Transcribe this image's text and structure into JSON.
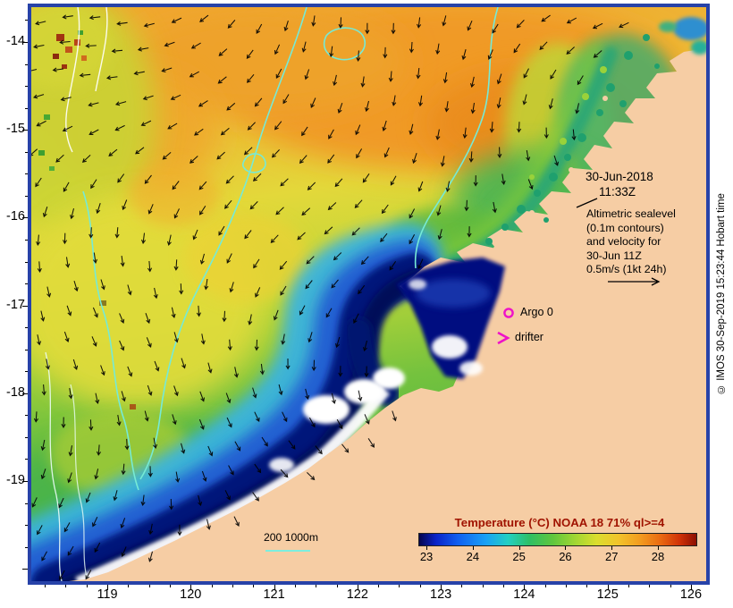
{
  "axes": {
    "lat_labels": [
      "-14",
      "-15",
      "-16",
      "-17",
      "-18",
      "-19"
    ],
    "lon_labels": [
      "119",
      "120",
      "121",
      "122",
      "123",
      "124",
      "125",
      "126"
    ]
  },
  "annotations": {
    "date_line1": "30-Jun-2018",
    "date_line2": "11:33Z",
    "altimetric_lines": [
      "Altimetric sealevel",
      "(0.1m contours)",
      "and velocity for",
      "30-Jun 11Z",
      "0.5m/s (1kt 24h)"
    ],
    "argo_label": "Argo 0",
    "drifter_label": "drifter",
    "depth_label": "200 1000m",
    "copyright": "© IMOS 30-Sep-2019 15:23:44 Hobart time"
  },
  "colorbar": {
    "title": "Temperature (°C) NOAA 18 71% ql>=4",
    "title_color": "#a01300",
    "tick_labels": [
      "23",
      "24",
      "25",
      "26",
      "27",
      "28"
    ]
  },
  "colors": {
    "marker_magenta": "#ee12c8",
    "land": "#f6cda4",
    "contour_cyan": "#76ead6",
    "depth_line_cyan": "#7ceede",
    "frame_blue": "#2742a8",
    "arrow_black": "#000000"
  },
  "chart_data": {
    "type": "heatmap",
    "title": "Temperature (°C) NOAA 18 71% ql>=4",
    "colorbar_ticks": [
      23,
      24,
      25,
      26,
      27,
      28
    ],
    "lon_axis_ticks": [
      119,
      120,
      121,
      122,
      123,
      124,
      125,
      126
    ],
    "lat_axis_ticks": [
      -14,
      -15,
      -16,
      -17,
      -18,
      -19
    ],
    "legend_position": "bottom-right-inside"
  }
}
